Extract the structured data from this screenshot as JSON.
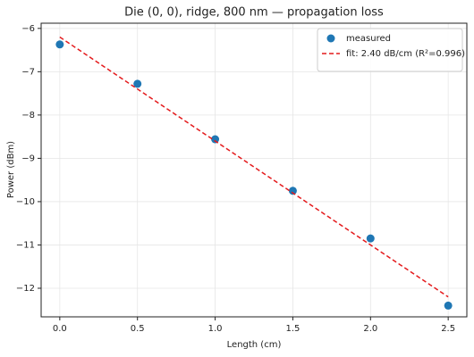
{
  "chart_data": {
    "type": "scatter",
    "title": "Die (0, 0), ridge, 800 nm — propagation loss",
    "xlabel": "Length (cm)",
    "ylabel": "Power (dBm)",
    "xlim": [
      -0.12,
      2.62
    ],
    "ylim": [
      -12.66,
      -5.88
    ],
    "xticks": [
      {
        "value": 0,
        "label": "0.0"
      },
      0.5,
      {
        "value": 1,
        "label": "1.0"
      },
      1.5,
      {
        "value": 2,
        "label": "2.0"
      },
      2.5
    ],
    "yticks": [
      {
        "value": -6,
        "label": "−6"
      },
      {
        "value": -7,
        "label": "−7"
      },
      {
        "value": -8,
        "label": "−8"
      },
      {
        "value": -9,
        "label": "−9"
      },
      {
        "value": -10,
        "label": "−10"
      },
      {
        "value": -11,
        "label": "−11"
      },
      {
        "value": -12,
        "label": "−12"
      }
    ],
    "grid": true,
    "legend": "upper right",
    "series": [
      {
        "name": "measured",
        "type": "scatter",
        "color": "#1f77b4",
        "x": [
          0,
          0.5,
          1.0,
          1.5,
          2.0,
          2.5
        ],
        "values": [
          -6.37,
          -7.28,
          -8.56,
          -9.75,
          -10.85,
          -12.4
        ]
      },
      {
        "name": "fit: 2.40 dB/cm  (R²=0.996)",
        "type": "line",
        "dashed": true,
        "color": "#e41a1c",
        "x": [
          0,
          2.5
        ],
        "values": [
          -6.2,
          -12.2
        ]
      }
    ]
  }
}
